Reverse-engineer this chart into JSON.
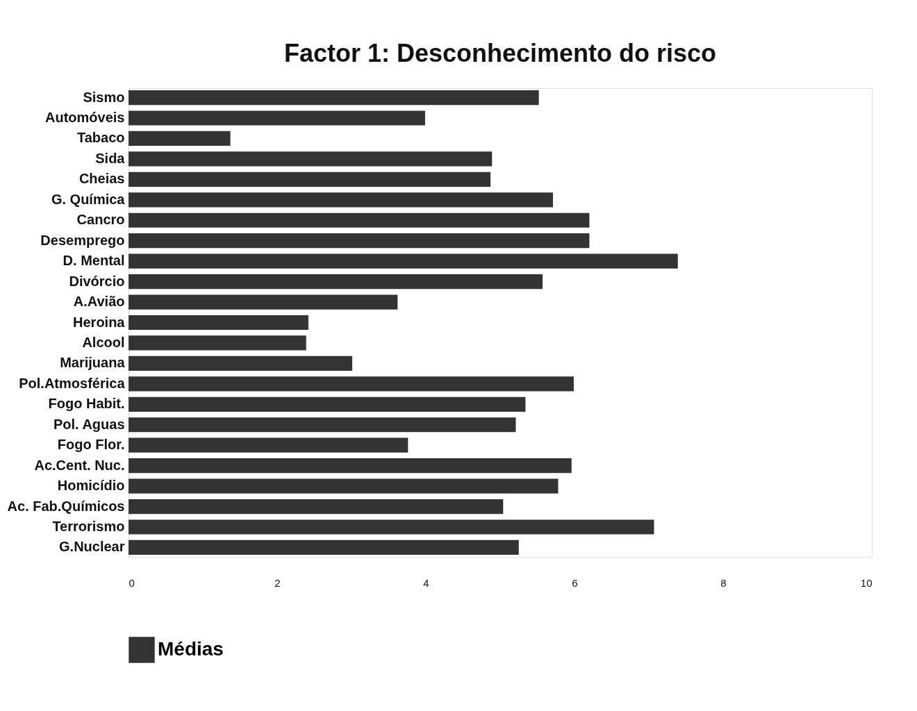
{
  "chart_data": {
    "type": "bar",
    "orientation": "horizontal",
    "title": "Factor 1: Desconhecimento do risco",
    "categories": [
      "Sismo",
      "Automóveis",
      "Tabaco",
      "Sida",
      "Cheias",
      "G. Química",
      "Cancro",
      "Desemprego",
      "D. Mental",
      "Divórcio",
      "A.Avião",
      "Heroina",
      "Alcool",
      "Marijuana",
      "Pol.Atmosférica",
      "Fogo Habit.",
      "Pol. Aguas",
      "Fogo Flor.",
      "Ac.Cent. Nuc.",
      "Homicídio",
      "Ac. Fab.Químicos",
      "Terrorismo",
      "G.Nuclear"
    ],
    "series": [
      {
        "name": "Médias",
        "color": "#333333",
        "values": [
          5.52,
          3.99,
          1.37,
          4.89,
          4.87,
          5.71,
          6.2,
          6.2,
          7.39,
          5.57,
          3.62,
          2.42,
          2.39,
          3.01,
          5.99,
          5.34,
          5.21,
          3.76,
          5.96,
          5.78,
          5.04,
          7.07,
          5.25
        ]
      }
    ],
    "xlim": [
      0,
      10
    ],
    "xticks": [
      0,
      2,
      4,
      6,
      8,
      10
    ],
    "grid": false,
    "legend": "bottom"
  }
}
